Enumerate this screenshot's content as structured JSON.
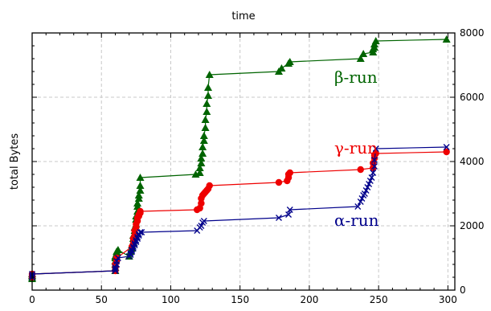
{
  "chart_data": {
    "type": "line",
    "title": "",
    "xlabel": "time",
    "ylabel": "total Bytes",
    "xlim": [
      0,
      305
    ],
    "ylim": [
      0,
      8000
    ],
    "x_ticks": [
      0,
      50,
      100,
      150,
      200,
      250,
      300
    ],
    "y_ticks": [
      0,
      2000,
      4000,
      6000,
      8000
    ],
    "x_axis_position": "top-and-bottom",
    "left_y_tick_labels": false,
    "right_y_tick_labels": true,
    "grid": true,
    "legend": "none",
    "colors": {
      "beta": "#006400",
      "gamma": "#ee0000",
      "alpha": "#00008b",
      "grid": "#c8c8c8",
      "frame": "#000000"
    },
    "series": [
      {
        "label": "β-run",
        "key": "beta",
        "marker": "triangle-icon",
        "color": "#006400",
        "x": [
          0,
          0,
          0,
          0,
          60,
          60,
          60,
          60,
          60,
          60,
          61,
          61,
          61,
          62,
          70,
          71,
          72,
          72,
          73,
          73,
          73,
          74,
          74,
          75,
          75,
          75,
          76,
          76,
          76,
          77,
          77,
          78,
          78,
          78,
          118,
          121,
          121,
          122,
          122,
          123,
          123,
          124,
          124,
          125,
          125,
          126,
          126,
          127,
          127,
          128,
          178,
          180,
          185,
          186,
          237,
          239,
          246,
          246,
          247,
          247,
          248,
          299
        ],
        "y": [
          350,
          400,
          450,
          500,
          600,
          700,
          800,
          900,
          1000,
          1050,
          1100,
          1150,
          1200,
          1250,
          1050,
          1200,
          1300,
          1400,
          1500,
          1600,
          1700,
          1850,
          1950,
          2050,
          2200,
          2300,
          2450,
          2600,
          2700,
          2850,
          2950,
          3100,
          3250,
          3500,
          3600,
          3650,
          3800,
          3950,
          4100,
          4250,
          4450,
          4650,
          4800,
          5050,
          5300,
          5550,
          5800,
          6050,
          6300,
          6700,
          6800,
          6900,
          7050,
          7100,
          7200,
          7350,
          7400,
          7500,
          7550,
          7650,
          7750,
          7800
        ]
      },
      {
        "label": "γ-run",
        "key": "gamma",
        "marker": "circle-icon",
        "color": "#ee0000",
        "x": [
          0,
          0,
          0,
          60,
          60,
          60,
          61,
          61,
          72,
          73,
          73,
          74,
          74,
          75,
          75,
          76,
          76,
          77,
          77,
          78,
          78,
          119,
          121,
          122,
          122,
          123,
          124,
          125,
          126,
          127,
          128,
          178,
          184,
          185,
          185,
          186,
          237,
          246,
          246,
          247,
          247,
          248,
          299
        ],
        "y": [
          400,
          450,
          500,
          600,
          700,
          800,
          900,
          1000,
          1350,
          1450,
          1600,
          1700,
          1850,
          1950,
          2050,
          2150,
          2250,
          2300,
          2350,
          2400,
          2450,
          2500,
          2550,
          2700,
          2850,
          2950,
          3000,
          3050,
          3100,
          3150,
          3250,
          3350,
          3400,
          3500,
          3600,
          3650,
          3750,
          3800,
          3950,
          4100,
          4200,
          4250,
          4300
        ]
      },
      {
        "label": "α-run",
        "key": "alpha",
        "marker": "cross-icon",
        "color": "#00008b",
        "x": [
          0,
          0,
          0,
          60,
          60,
          60,
          61,
          61,
          62,
          70,
          71,
          71,
          72,
          72,
          73,
          73,
          74,
          74,
          75,
          75,
          76,
          76,
          77,
          77,
          78,
          79,
          119,
          121,
          122,
          123,
          124,
          178,
          185,
          186,
          235,
          237,
          238,
          239,
          240,
          241,
          242,
          243,
          244,
          245,
          246,
          247,
          247,
          248,
          299
        ],
        "y": [
          400,
          450,
          500,
          600,
          650,
          700,
          800,
          900,
          1000,
          1050,
          1100,
          1150,
          1200,
          1250,
          1300,
          1350,
          1400,
          1450,
          1500,
          1550,
          1600,
          1650,
          1700,
          1750,
          1800,
          1800,
          1850,
          1950,
          2000,
          2100,
          2150,
          2250,
          2350,
          2500,
          2600,
          2750,
          2850,
          2950,
          3000,
          3100,
          3200,
          3300,
          3400,
          3500,
          3650,
          3850,
          4050,
          4400,
          4450
        ]
      }
    ],
    "annotations": [
      {
        "text": "β-run",
        "series": "beta",
        "x": 218,
        "y": 6450
      },
      {
        "text": "γ-run",
        "series": "gamma",
        "x": 218,
        "y": 4250
      },
      {
        "text": "α-run",
        "series": "alpha",
        "x": 218,
        "y": 2000
      }
    ]
  }
}
